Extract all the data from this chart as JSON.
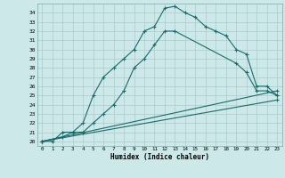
{
  "xlabel": "Humidex (Indice chaleur)",
  "xlim": [
    -0.5,
    23.5
  ],
  "ylim": [
    19.5,
    35.0
  ],
  "xticks": [
    0,
    1,
    2,
    3,
    4,
    5,
    6,
    7,
    8,
    9,
    10,
    11,
    12,
    13,
    14,
    15,
    16,
    17,
    18,
    19,
    20,
    21,
    22,
    23
  ],
  "yticks": [
    20,
    21,
    22,
    23,
    24,
    25,
    26,
    27,
    28,
    29,
    30,
    31,
    32,
    33,
    34
  ],
  "bg_color": "#cce8e8",
  "grid_color": "#aacccc",
  "line_color": "#1a6b6b",
  "line1_x": [
    0,
    1,
    2,
    3,
    4,
    5,
    6,
    7,
    8,
    9,
    10,
    11,
    12,
    13,
    14,
    15,
    16,
    17,
    18,
    19,
    20,
    21,
    22,
    23
  ],
  "line1_y": [
    20,
    20,
    21,
    21,
    22,
    25,
    27,
    28,
    29,
    30,
    32,
    32.5,
    34.5,
    34.7,
    34.0,
    33.5,
    32.5,
    32.0,
    31.5,
    30.0,
    29.5,
    26.0,
    26.0,
    25.0
  ],
  "line2_x": [
    0,
    2,
    3,
    4,
    5,
    6,
    7,
    8,
    9,
    10,
    11,
    12,
    13,
    19,
    20,
    21,
    22,
    23
  ],
  "line2_y": [
    20,
    20.5,
    21,
    21,
    22,
    23,
    24,
    25.5,
    28,
    29,
    30.5,
    32,
    32,
    28.5,
    27.5,
    25.5,
    25.5,
    25.0
  ],
  "line3_x": [
    0,
    23
  ],
  "line3_y": [
    20,
    24.5
  ],
  "line4_x": [
    0,
    23
  ],
  "line4_y": [
    20,
    25.5
  ]
}
